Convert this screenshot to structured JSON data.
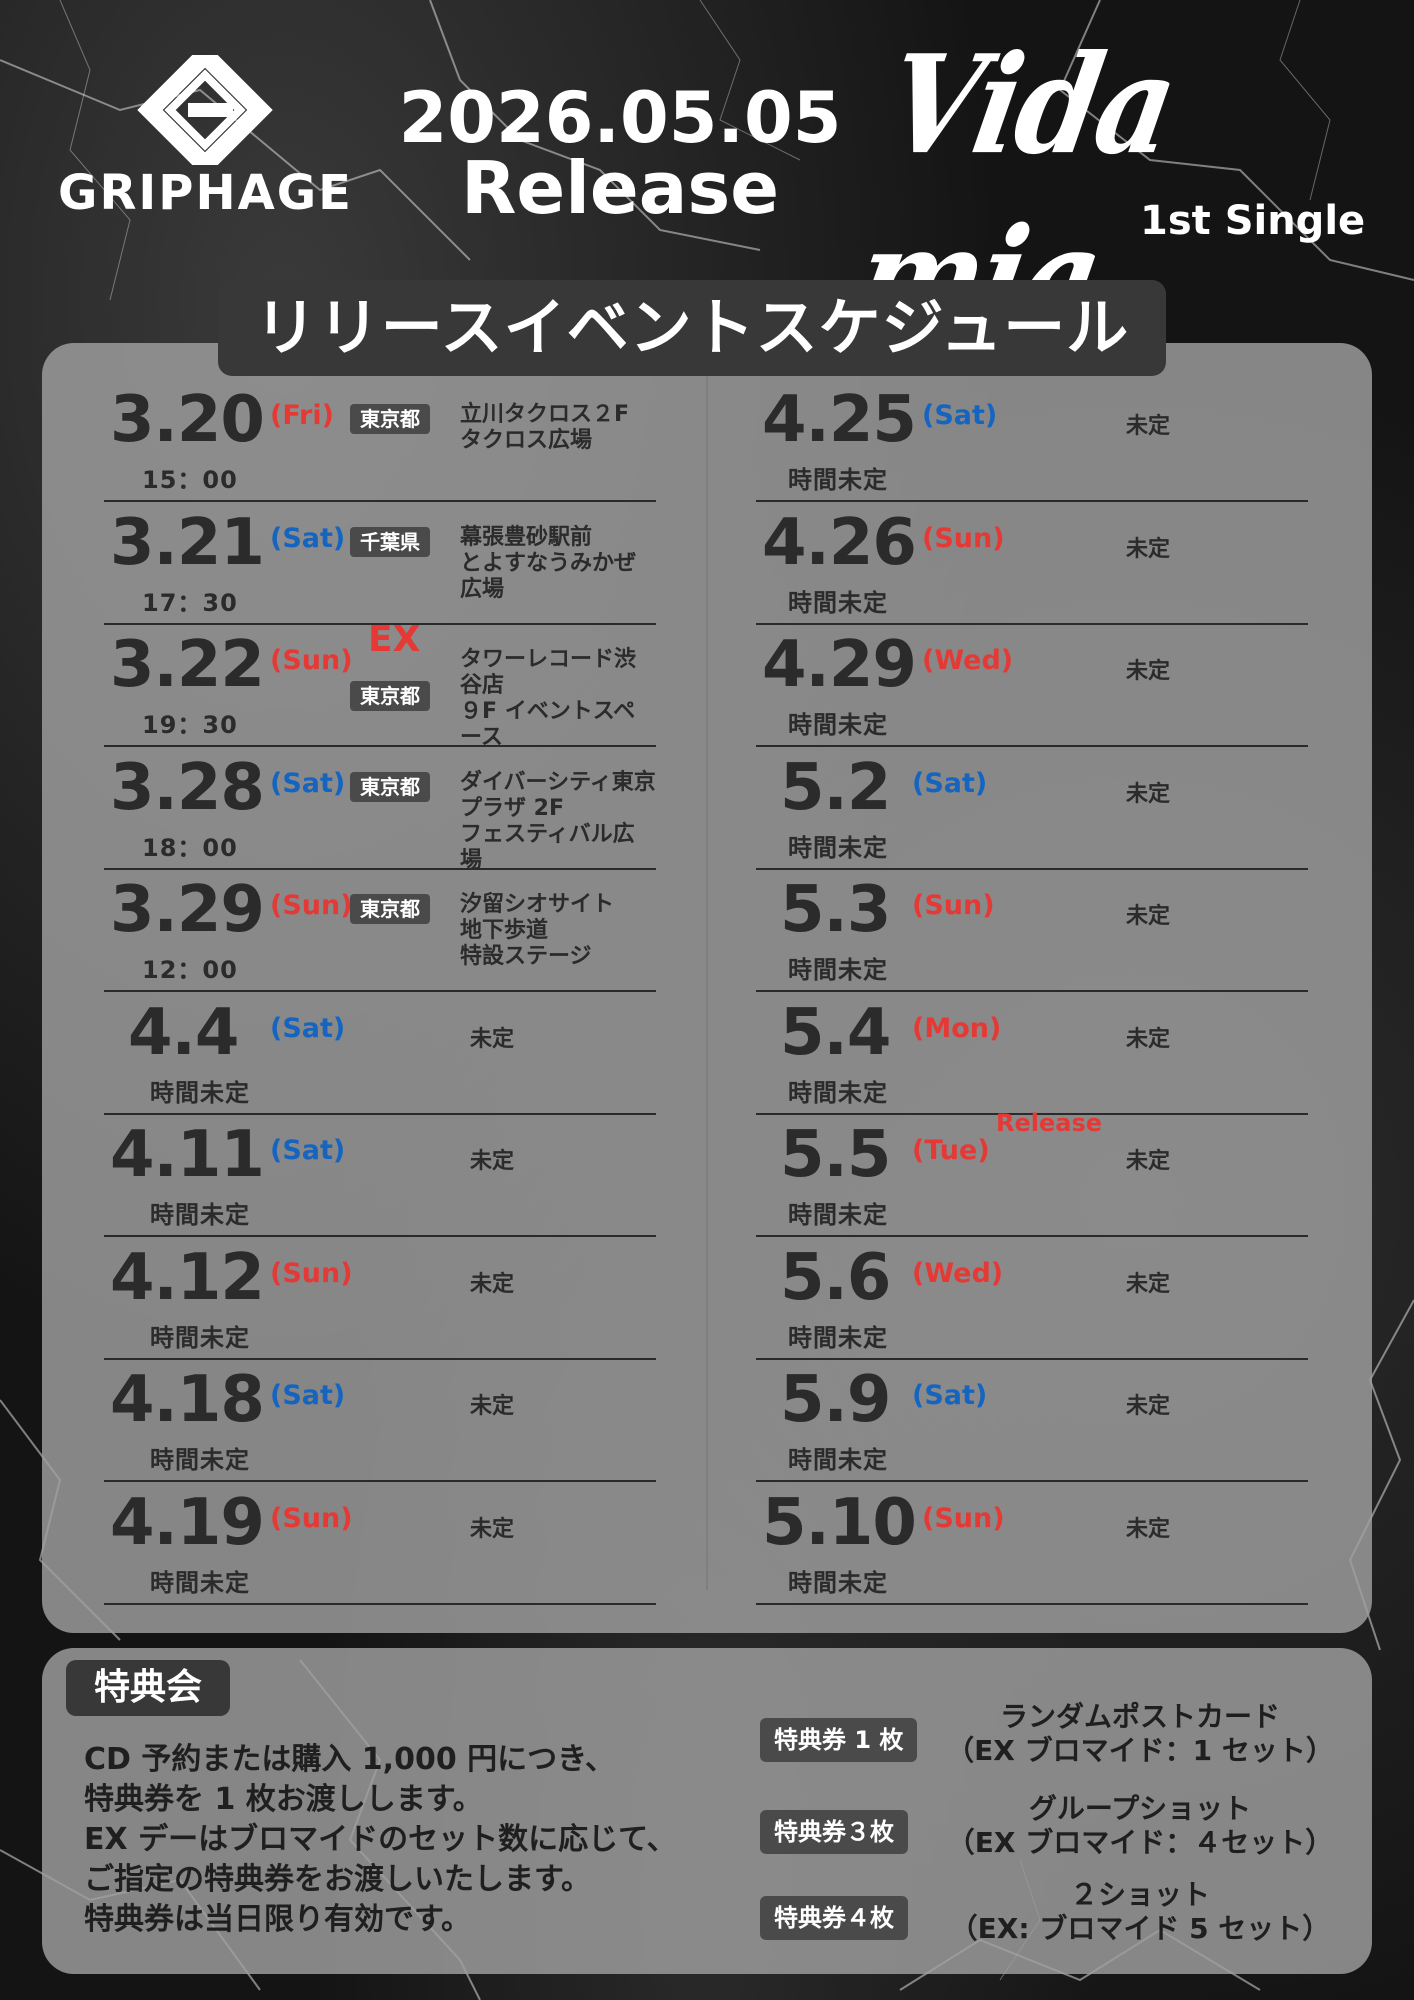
{
  "header": {
    "logo_text": "GRIPHAGE",
    "release_date": "2026.05.05",
    "release_word": "Release",
    "single_title": "Vida mia",
    "single_label": "1st Single"
  },
  "schedule_title": "リリースイベントスケジュール",
  "left_events": [
    {
      "date": "3.20",
      "day": "(Fri)",
      "time": "15：00",
      "prefecture": "東京都",
      "venue": "立川タクロス２F\nタクロス広場"
    },
    {
      "date": "3.21",
      "day": "(Sat)",
      "time": "17：30",
      "prefecture": "千葉県",
      "venue": "幕張豊砂駅前\nとよすなうみかぜ広場"
    },
    {
      "date": "3.22",
      "day": "(Sun)",
      "time": "19：30",
      "prefecture": "東京都",
      "venue": "タワーレコード渋谷店\n９F イベントスペース",
      "tag": "EX"
    },
    {
      "date": "3.28",
      "day": "(Sat)",
      "time": "18：00",
      "prefecture": "東京都",
      "venue": "ダイバーシティ東京\nプラザ 2F\nフェスティバル広場"
    },
    {
      "date": "3.29",
      "day": "(Sun)",
      "time": "12：00",
      "prefecture": "東京都",
      "venue": "汐留シオサイト\n地下歩道\n特設ステージ"
    },
    {
      "date": "4.4",
      "day": "(Sat)",
      "time": "時間未定",
      "venue": "未定"
    },
    {
      "date": "4.11",
      "day": "(Sat)",
      "time": "時間未定",
      "venue": "未定"
    },
    {
      "date": "4.12",
      "day": "(Sun)",
      "time": "時間未定",
      "venue": "未定"
    },
    {
      "date": "4.18",
      "day": "(Sat)",
      "time": "時間未定",
      "venue": "未定"
    },
    {
      "date": "4.19",
      "day": "(Sun)",
      "time": "時間未定",
      "venue": "未定"
    }
  ],
  "right_events": [
    {
      "date": "4.25",
      "day": "(Sat)",
      "time": "時間未定",
      "venue": "未定"
    },
    {
      "date": "4.26",
      "day": "(Sun)",
      "time": "時間未定",
      "venue": "未定"
    },
    {
      "date": "4.29",
      "day": "(Wed)",
      "time": "時間未定",
      "venue": "未定"
    },
    {
      "date": "5.2",
      "day": "(Sat)",
      "time": "時間未定",
      "venue": "未定"
    },
    {
      "date": "5.3",
      "day": "(Sun)",
      "time": "時間未定",
      "venue": "未定"
    },
    {
      "date": "5.4",
      "day": "(Mon)",
      "time": "時間未定",
      "venue": "未定"
    },
    {
      "date": "5.5",
      "day": "(Tue)",
      "time": "時間未定",
      "venue": "未定",
      "tag": "Release"
    },
    {
      "date": "5.6",
      "day": "(Wed)",
      "time": "時間未定",
      "venue": "未定"
    },
    {
      "date": "5.9",
      "day": "(Sat)",
      "time": "時間未定",
      "venue": "未定"
    },
    {
      "date": "5.10",
      "day": "(Sun)",
      "time": "時間未定",
      "venue": "未定"
    }
  ],
  "bonus": {
    "title": "特典会",
    "lines": [
      "CD 予約または購入 1,000 円につき、",
      "特典券を 1 枚お渡しします。",
      "EX デーはブロマイドのセット数に応じて、",
      "ご指定の特典券をお渡しいたします。",
      "特典券は当日限り有効です。"
    ],
    "tickets": [
      {
        "label": "特典券 1 枚",
        "desc1": "ランダムポストカード",
        "desc2": "（EX ブロマイド：1 セット）"
      },
      {
        "label": "特典券３枚",
        "desc1": "グループショット",
        "desc2": "（EX ブロマイド：４セット）"
      },
      {
        "label": "特典券４枚",
        "desc1": "２ショット",
        "desc2": "（EX: ブロマイド 5 セット）"
      }
    ]
  },
  "colors": {
    "saturday": "#1565c0",
    "sunday_holiday": "#e53935",
    "panel": "#a0a0a0",
    "label_bg": "#4a4a4a"
  }
}
